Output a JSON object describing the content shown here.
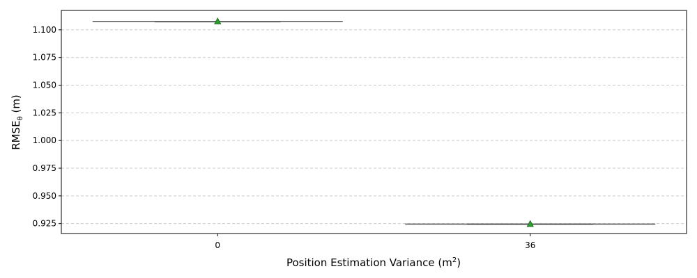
{
  "chart_data": {
    "type": "boxplot",
    "categories": [
      "0",
      "36"
    ],
    "boxes": [
      {
        "category": "0",
        "min": 1.1075,
        "q1": 1.1075,
        "median": 1.1075,
        "q3": 1.1075,
        "max": 1.1075,
        "mean": 1.1075
      },
      {
        "category": "36",
        "min": 0.9245,
        "q1": 0.9245,
        "median": 0.9245,
        "q3": 0.9245,
        "max": 0.9245,
        "mean": 0.9245
      }
    ],
    "title": "",
    "xlabel": {
      "text": "Position Estimation Variance (m",
      "sup": "2",
      "suffix": ")"
    },
    "ylabel": {
      "text": "RMSE",
      "sub": "θ",
      "suffix": " (m)"
    },
    "ylim": [
      0.916,
      1.1175
    ],
    "yticks": [
      0.925,
      0.95,
      0.975,
      1.0,
      1.025,
      1.05,
      1.075,
      1.1
    ],
    "ytick_labels": [
      "0.925",
      "0.950",
      "0.975",
      "1.000",
      "1.025",
      "1.050",
      "1.075",
      "1.100"
    ],
    "grid": "y-dashed",
    "colors": {
      "box": "#666666",
      "mean_marker": "#2ca02c",
      "grid": "#c8c8c8"
    }
  }
}
